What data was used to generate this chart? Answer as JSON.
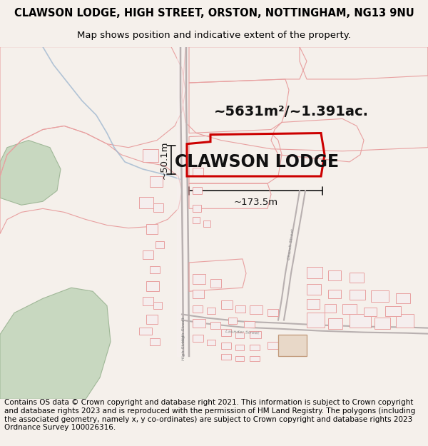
{
  "title_line1": "CLAWSON LODGE, HIGH STREET, ORSTON, NOTTINGHAM, NG13 9NU",
  "title_line2": "Map shows position and indicative extent of the property.",
  "property_label": "CLAWSON LODGE",
  "area_text": "~5631m²/~1.391ac.",
  "dim_width": "~173.5m",
  "dim_height": "~50.1m",
  "copyright_text": "Contains OS data © Crown copyright and database right 2021. This information is subject to Crown copyright and database rights 2023 and is reproduced with the permission of HM Land Registry. The polygons (including the associated geometry, namely x, y co-ordinates) are subject to Crown copyright and database rights 2023 Ordnance Survey 100026316.",
  "bg_color": "#f5f0eb",
  "map_bg": "#ffffff",
  "road_color": "#e8b0b0",
  "road_color2": "#d09090",
  "highlight_color": "#cc0000",
  "green_fill": "#c8d8c0",
  "green_edge": "#a0b898",
  "blue_line": "#a0b8d0",
  "field_edge": "#e8a0a0",
  "bldg_fill": "#f5eeee",
  "bldg_dark": "#e8d0c8",
  "title_fontsize": 10.5,
  "subtitle_fontsize": 9.5,
  "label_fontsize": 17,
  "area_fontsize": 14,
  "copyright_fontsize": 7.5,
  "dim_fontsize": 9.5
}
